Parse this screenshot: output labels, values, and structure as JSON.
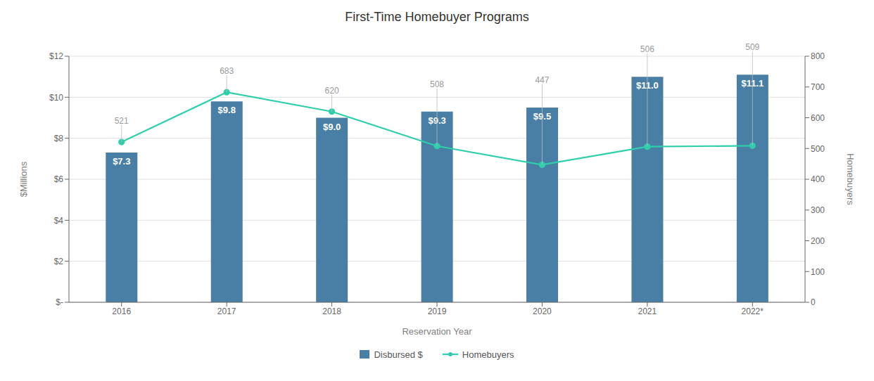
{
  "chart_data": {
    "type": "bar",
    "title": "First-Time Homebuyer Programs",
    "xlabel": "Reservation Year",
    "ylabel": "$Millions",
    "y2label": "Homebuyers",
    "categories": [
      "2016",
      "2017",
      "2018",
      "2019",
      "2020",
      "2021",
      "2022*"
    ],
    "series": [
      {
        "name": "Disbursed $",
        "type": "bar",
        "color": "#4a7fa5",
        "values": [
          7.3,
          9.8,
          9.0,
          9.3,
          9.5,
          11.0,
          11.1
        ],
        "value_labels": [
          "$7.3",
          "$9.8",
          "$9.0",
          "$9.3",
          "$9.5",
          "$11.0",
          "$11.1"
        ]
      },
      {
        "name": "Homebuyers",
        "type": "line",
        "axis": "y2",
        "color": "#2ecfaa",
        "marker": "circle",
        "line_style": "solid",
        "values": [
          521,
          683,
          620,
          508,
          447,
          506,
          509
        ]
      }
    ],
    "ylim": [
      0,
      12
    ],
    "yticks": [
      {
        "value": 0,
        "label": "$-"
      },
      {
        "value": 2,
        "label": "$2"
      },
      {
        "value": 4,
        "label": "$4"
      },
      {
        "value": 6,
        "label": "$6"
      },
      {
        "value": 8,
        "label": "$8"
      },
      {
        "value": 10,
        "label": "$10"
      },
      {
        "value": 12,
        "label": "$12"
      }
    ],
    "y2lim": [
      0,
      800
    ],
    "y2ticks": [
      0,
      100,
      200,
      300,
      400,
      500,
      600,
      700,
      800
    ],
    "grid": true,
    "legend": "bottom",
    "data_labels": true
  }
}
